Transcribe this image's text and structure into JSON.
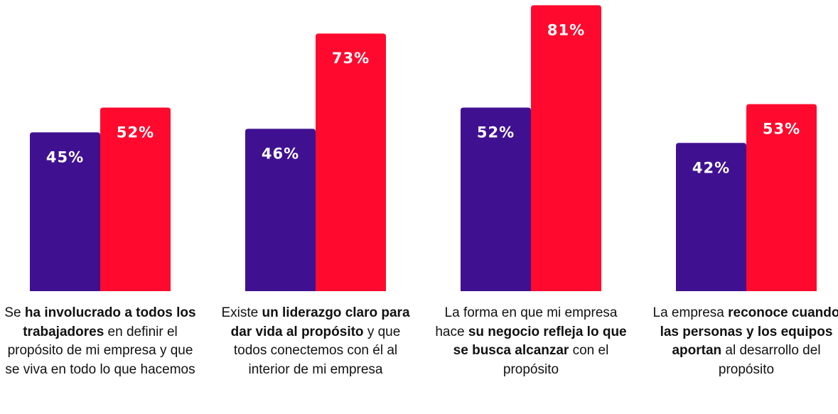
{
  "chart_data": {
    "type": "bar",
    "categories": [
      [
        "Se ",
        "ha involucrado a todos los trabajadores",
        " en definir el propósito de mi empresa y que se viva en todo lo que hacemos"
      ],
      [
        "Existe ",
        "un liderazgo claro para dar vida al propósito",
        " y que todos conectemos con él al interior de mi empresa"
      ],
      [
        "La forma en que mi empresa hace ",
        "su negocio refleja lo que se busca alcanzar",
        " con el propósito"
      ],
      [
        "La empresa ",
        "reconoce cuando las personas y los equipos aportan",
        " al desarrollo del propósito"
      ]
    ],
    "series": [
      {
        "color": "#3f1190",
        "values": [
          45,
          46,
          52,
          42
        ],
        "value_labels": [
          "45%",
          "46%",
          "52%",
          "42%"
        ]
      },
      {
        "color": "#ff0a2e",
        "values": [
          52,
          73,
          81,
          53
        ],
        "value_labels": [
          "52%",
          "73%",
          "81%",
          "53%"
        ]
      }
    ]
  }
}
